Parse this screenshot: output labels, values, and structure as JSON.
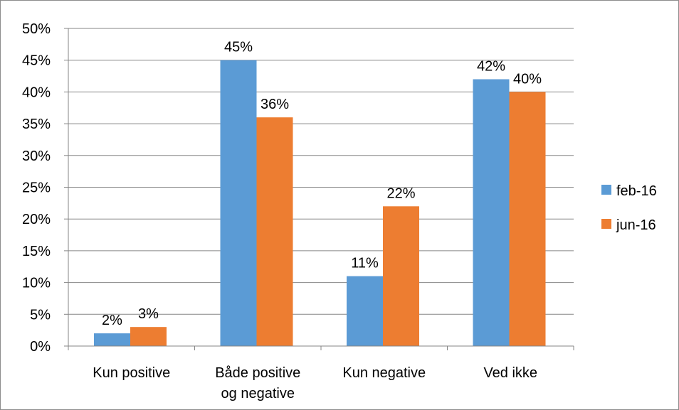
{
  "chart_data": {
    "type": "bar",
    "categories": [
      [
        "Kun positive"
      ],
      [
        "Både positive",
        "og negative"
      ],
      [
        "Kun negative"
      ],
      [
        "Ved ikke"
      ]
    ],
    "series": [
      {
        "name": "feb-16",
        "values": [
          2,
          45,
          11,
          42
        ],
        "labels": [
          "2%",
          "45%",
          "11%",
          "42%"
        ]
      },
      {
        "name": "jun-16",
        "values": [
          3,
          36,
          22,
          40
        ],
        "labels": [
          "3%",
          "36%",
          "22%",
          "40%"
        ]
      }
    ],
    "ylim": [
      0,
      50
    ],
    "yticks": [
      "0%",
      "5%",
      "10%",
      "15%",
      "20%",
      "25%",
      "30%",
      "35%",
      "40%",
      "45%",
      "50%"
    ],
    "grid": true,
    "legend_position": "right",
    "title": "",
    "xlabel": "",
    "ylabel": ""
  },
  "colors": {
    "feb-16": "#5b9bd5",
    "jun-16": "#ed7d31",
    "grid": "#868686",
    "axis": "#868686"
  }
}
